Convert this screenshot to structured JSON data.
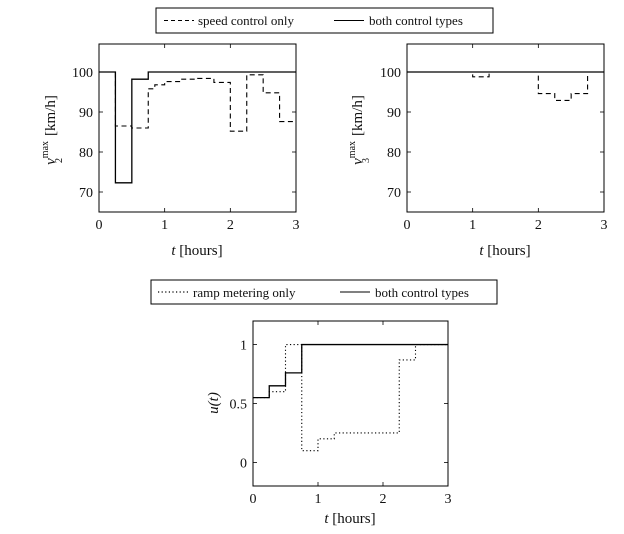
{
  "chart_data": [
    {
      "type": "line",
      "step": true,
      "xlabel_var": "t",
      "xlabel_unit": "[hours]",
      "ylabel_var": "v",
      "ylabel_sub": "2",
      "ylabel_sup": "max",
      "ylabel_unit": "[km/h]",
      "xlim": [
        0,
        3
      ],
      "ylim": [
        65,
        107
      ],
      "xticks": [
        0,
        1,
        2,
        3
      ],
      "yticks": [
        70,
        80,
        90,
        100
      ],
      "grid": false,
      "legend_position": "top-center",
      "series": [
        {
          "name": "speed control only",
          "style": "dashed",
          "x": [
            0,
            0.25,
            0.25,
            0.5,
            0.5,
            0.75,
            0.75,
            0.85,
            0.85,
            1.0,
            1.0,
            1.25,
            1.25,
            1.5,
            1.5,
            1.75,
            1.75,
            2.0,
            2.0,
            2.25,
            2.25,
            2.5,
            2.5,
            2.75,
            2.75,
            3.0
          ],
          "y": [
            100,
            100,
            86.5,
            86.5,
            86,
            86,
            95.8,
            95.8,
            96.8,
            96.8,
            97.6,
            97.6,
            98.2,
            98.2,
            98.4,
            98.4,
            97.4,
            97.4,
            85.2,
            85.2,
            99.3,
            99.3,
            94.8,
            94.8,
            87.6,
            87.6
          ]
        },
        {
          "name": "both control types",
          "style": "solid",
          "x": [
            0,
            0.25,
            0.25,
            0.5,
            0.5,
            0.75,
            0.75,
            3.0
          ],
          "y": [
            100,
            100,
            72.3,
            72.3,
            98.2,
            98.2,
            100,
            100
          ]
        }
      ]
    },
    {
      "type": "line",
      "step": true,
      "xlabel_var": "t",
      "xlabel_unit": "[hours]",
      "ylabel_var": "v",
      "ylabel_sub": "3",
      "ylabel_sup": "max",
      "ylabel_unit": "[km/h]",
      "xlim": [
        0,
        3
      ],
      "ylim": [
        65,
        107
      ],
      "xticks": [
        0,
        1,
        2,
        3
      ],
      "yticks": [
        70,
        80,
        90,
        100
      ],
      "grid": false,
      "legend_position": "shared-top",
      "series": [
        {
          "name": "speed control only",
          "style": "dashed",
          "x": [
            0,
            1.0,
            1.0,
            1.25,
            1.25,
            2.0,
            2.0,
            2.25,
            2.25,
            2.5,
            2.5,
            2.75,
            2.75,
            2.85
          ],
          "y": [
            100,
            100,
            98.8,
            98.8,
            100,
            100,
            94.6,
            94.6,
            92.9,
            92.9,
            94.6,
            94.6,
            100,
            100
          ]
        },
        {
          "name": "both control types",
          "style": "solid",
          "x": [
            0,
            3.0
          ],
          "y": [
            100,
            100
          ]
        }
      ]
    },
    {
      "type": "line",
      "step": true,
      "xlabel_var": "t",
      "xlabel_unit": "[hours]",
      "ylabel_text": "u(t)",
      "xlim": [
        0,
        3
      ],
      "ylim": [
        -0.2,
        1.2
      ],
      "xticks": [
        0,
        1,
        2,
        3
      ],
      "yticks": [
        0,
        0.5,
        1
      ],
      "grid": false,
      "legend_position": "top-center",
      "series": [
        {
          "name": "ramp metering only",
          "style": "dotted",
          "x": [
            0,
            0.25,
            0.25,
            0.5,
            0.5,
            0.75,
            0.75,
            1.0,
            1.0,
            1.25,
            1.25,
            2.25,
            2.25,
            2.5,
            2.5,
            3.0
          ],
          "y": [
            0.55,
            0.55,
            0.6,
            0.6,
            1.0,
            1.0,
            0.1,
            0.1,
            0.2,
            0.2,
            0.25,
            0.25,
            0.87,
            0.87,
            1.0,
            1.0
          ]
        },
        {
          "name": "both control types",
          "style": "solid",
          "x": [
            0,
            0.25,
            0.25,
            0.5,
            0.5,
            0.75,
            0.75,
            3.0
          ],
          "y": [
            0.55,
            0.55,
            0.65,
            0.65,
            0.76,
            0.76,
            1.0,
            1.0
          ]
        }
      ]
    }
  ]
}
